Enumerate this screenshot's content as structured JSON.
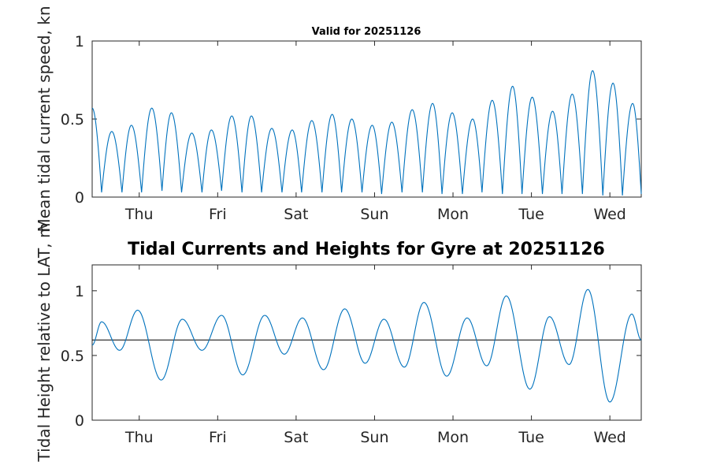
{
  "chart_data": [
    {
      "type": "line",
      "title": "Valid for 20251126",
      "ylabel": "Mean tidal current speed, kn",
      "ylim": [
        0,
        1
      ],
      "yticks": [
        0,
        0.5,
        1
      ],
      "ytick_labels": [
        "0",
        "0.5",
        "1"
      ],
      "xlim": [
        0,
        7
      ],
      "x_tick_positions": [
        0.6,
        1.6,
        2.6,
        3.6,
        4.6,
        5.6,
        6.6
      ],
      "x_tick_labels": [
        "Thu",
        "Fri",
        "Sat",
        "Sun",
        "Mon",
        "Tue",
        "Wed"
      ],
      "grid": false,
      "series": [
        {
          "color": "#0072bd",
          "peaks": [
            [
              0.0,
              0.57
            ],
            [
              0.25,
              0.42
            ],
            [
              0.5,
              0.46
            ],
            [
              0.76,
              0.57
            ],
            [
              1.01,
              0.54
            ],
            [
              1.27,
              0.41
            ],
            [
              1.52,
              0.43
            ],
            [
              1.78,
              0.52
            ],
            [
              2.03,
              0.52
            ],
            [
              2.29,
              0.44
            ],
            [
              2.55,
              0.43
            ],
            [
              2.8,
              0.49
            ],
            [
              3.06,
              0.53
            ],
            [
              3.31,
              0.5
            ],
            [
              3.57,
              0.46
            ],
            [
              3.82,
              0.48
            ],
            [
              4.08,
              0.56
            ],
            [
              4.34,
              0.6
            ],
            [
              4.59,
              0.54
            ],
            [
              4.85,
              0.5
            ],
            [
              5.1,
              0.62
            ],
            [
              5.36,
              0.71
            ],
            [
              5.61,
              0.64
            ],
            [
              5.87,
              0.55
            ],
            [
              6.12,
              0.66
            ],
            [
              6.38,
              0.81
            ],
            [
              6.64,
              0.73
            ],
            [
              6.89,
              0.6
            ]
          ],
          "troughs": [
            [
              0.12,
              0.03
            ],
            [
              0.38,
              0.03
            ],
            [
              0.63,
              0.03
            ],
            [
              0.89,
              0.04
            ],
            [
              1.14,
              0.03
            ],
            [
              1.4,
              0.03
            ],
            [
              1.65,
              0.04
            ],
            [
              1.91,
              0.03
            ],
            [
              2.16,
              0.03
            ],
            [
              2.42,
              0.03
            ],
            [
              2.67,
              0.03
            ],
            [
              2.93,
              0.03
            ],
            [
              3.18,
              0.03
            ],
            [
              3.44,
              0.03
            ],
            [
              3.69,
              0.02
            ],
            [
              3.95,
              0.03
            ],
            [
              4.21,
              0.03
            ],
            [
              4.46,
              0.02
            ],
            [
              4.72,
              0.02
            ],
            [
              4.97,
              0.03
            ],
            [
              5.23,
              0.02
            ],
            [
              5.48,
              0.02
            ],
            [
              5.74,
              0.02
            ],
            [
              5.99,
              0.02
            ],
            [
              6.25,
              0.02
            ],
            [
              6.51,
              0.01
            ],
            [
              6.76,
              0.01
            ],
            [
              7.0,
              0.02
            ]
          ]
        }
      ]
    },
    {
      "type": "line",
      "title": "Tidal Currents and Heights for Gyre at 20251126",
      "ylabel": "Tidal Height relative to LAT, m",
      "ylim": [
        0,
        1.2
      ],
      "yticks": [
        0,
        0.5,
        1
      ],
      "ytick_labels": [
        "0",
        "0.5",
        "1"
      ],
      "xlim": [
        0,
        7
      ],
      "x_tick_positions": [
        0.6,
        1.6,
        2.6,
        3.6,
        4.6,
        5.6,
        6.6
      ],
      "x_tick_labels": [
        "Thu",
        "Fri",
        "Sat",
        "Sun",
        "Mon",
        "Tue",
        "Wed"
      ],
      "grid": false,
      "reference_line": {
        "y": 0.62,
        "color": "#000000"
      },
      "series": [
        {
          "color": "#0072bd",
          "extrema": [
            [
              0.0,
              0.58
            ],
            [
              0.12,
              0.76
            ],
            [
              0.35,
              0.54
            ],
            [
              0.58,
              0.85
            ],
            [
              0.88,
              0.31
            ],
            [
              1.15,
              0.78
            ],
            [
              1.4,
              0.54
            ],
            [
              1.65,
              0.81
            ],
            [
              1.92,
              0.35
            ],
            [
              2.2,
              0.81
            ],
            [
              2.45,
              0.51
            ],
            [
              2.68,
              0.79
            ],
            [
              2.95,
              0.39
            ],
            [
              3.22,
              0.86
            ],
            [
              3.48,
              0.44
            ],
            [
              3.72,
              0.78
            ],
            [
              3.98,
              0.41
            ],
            [
              4.23,
              0.91
            ],
            [
              4.52,
              0.34
            ],
            [
              4.78,
              0.79
            ],
            [
              5.03,
              0.42
            ],
            [
              5.28,
              0.96
            ],
            [
              5.58,
              0.24
            ],
            [
              5.83,
              0.8
            ],
            [
              6.08,
              0.43
            ],
            [
              6.32,
              1.01
            ],
            [
              6.6,
              0.14
            ],
            [
              6.88,
              0.82
            ],
            [
              7.0,
              0.62
            ]
          ]
        }
      ]
    }
  ]
}
